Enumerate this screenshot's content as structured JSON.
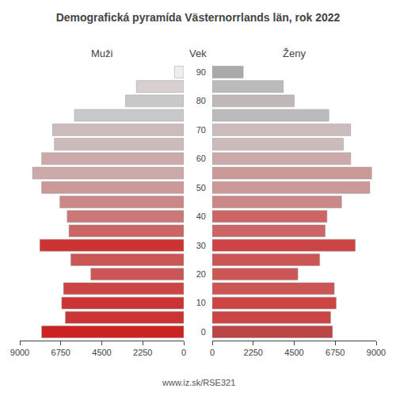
{
  "chart_data": {
    "type": "bar",
    "orientation": "horizontal",
    "title": "Demografická pyramída Västernorrlands län, rok 2022",
    "ylabel": "Vek",
    "categories": [
      "0",
      null,
      "10",
      null,
      "20",
      null,
      "30",
      null,
      "40",
      null,
      "50",
      null,
      "60",
      null,
      "70",
      null,
      "80",
      null,
      "90"
    ],
    "series": [
      {
        "name": "Muži",
        "values": [
          7800,
          6500,
          6700,
          6600,
          5100,
          6200,
          7900,
          6300,
          6400,
          6800,
          7800,
          8300,
          7800,
          7100,
          7200,
          6000,
          3200,
          2600,
          500
        ],
        "colors": [
          "#cc2222",
          "#cc3333",
          "#cc3333",
          "#cc4444",
          "#cc5555",
          "#cc5555",
          "#cc3333",
          "#cc6666",
          "#cc7777",
          "#cc8888",
          "#cc9999",
          "#ccaaaa",
          "#ccaaaa",
          "#ccbbbb",
          "#ccbbbb",
          "#c8c8c8",
          "#c8c8c8",
          "#d8d0d0",
          "#eeeeee"
        ]
      },
      {
        "name": "Ženy",
        "values": [
          6600,
          6500,
          6800,
          6700,
          4700,
          5900,
          7850,
          6200,
          6300,
          7100,
          8650,
          8750,
          7600,
          7200,
          7600,
          6400,
          4500,
          3900,
          1700
        ],
        "colors": [
          "#bb4444",
          "#cc4444",
          "#cc4444",
          "#cc5555",
          "#cc5555",
          "#cc5555",
          "#cc4444",
          "#cc6666",
          "#cc6666",
          "#cc8888",
          "#cc9999",
          "#cc9999",
          "#ccaaaa",
          "#ccbbbb",
          "#ccbbbb",
          "#bbbbbb",
          "#c0b8b8",
          "#bbbbbb",
          "#aaaaaa"
        ]
      }
    ],
    "xlim": [
      0,
      9000
    ],
    "xticks": [
      0,
      2250,
      4500,
      6750,
      9000
    ],
    "grid": false,
    "annotations": [
      "www.iz.sk/RSE321"
    ]
  }
}
